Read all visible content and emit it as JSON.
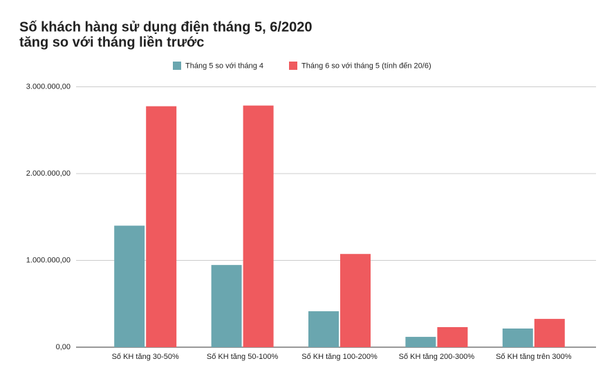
{
  "chart_data": {
    "type": "bar",
    "title": [
      "Số khách hàng sử dụng điện tháng 5, 6/2020",
      "tăng so với tháng liền trước"
    ],
    "categories": [
      "Số KH tăng 30-50%",
      "Số KH tăng 50-100%",
      "Số KH tăng 100-200%",
      "Số KH tăng 200-300%",
      "Số KH tăng trên 300%"
    ],
    "series": [
      {
        "name": "Tháng 5 so với tháng 4",
        "color": "#6aa6af",
        "values": [
          1400000,
          947000,
          414000,
          119000,
          215000
        ]
      },
      {
        "name": "Tháng 6 so với tháng 5 (tính đến 20/6)",
        "color": "#ef5a5e",
        "values": [
          2776000,
          2784000,
          1074000,
          231000,
          326000
        ]
      }
    ],
    "ylim": [
      0,
      3000000
    ],
    "yticks": [
      {
        "value": 0,
        "label": "0,00"
      },
      {
        "value": 1000000,
        "label": "1.000.000,00"
      },
      {
        "value": 2000000,
        "label": "2.000.000,00"
      },
      {
        "value": 3000000,
        "label": "3.000.000,00"
      }
    ],
    "grid": true,
    "legend": "top"
  }
}
